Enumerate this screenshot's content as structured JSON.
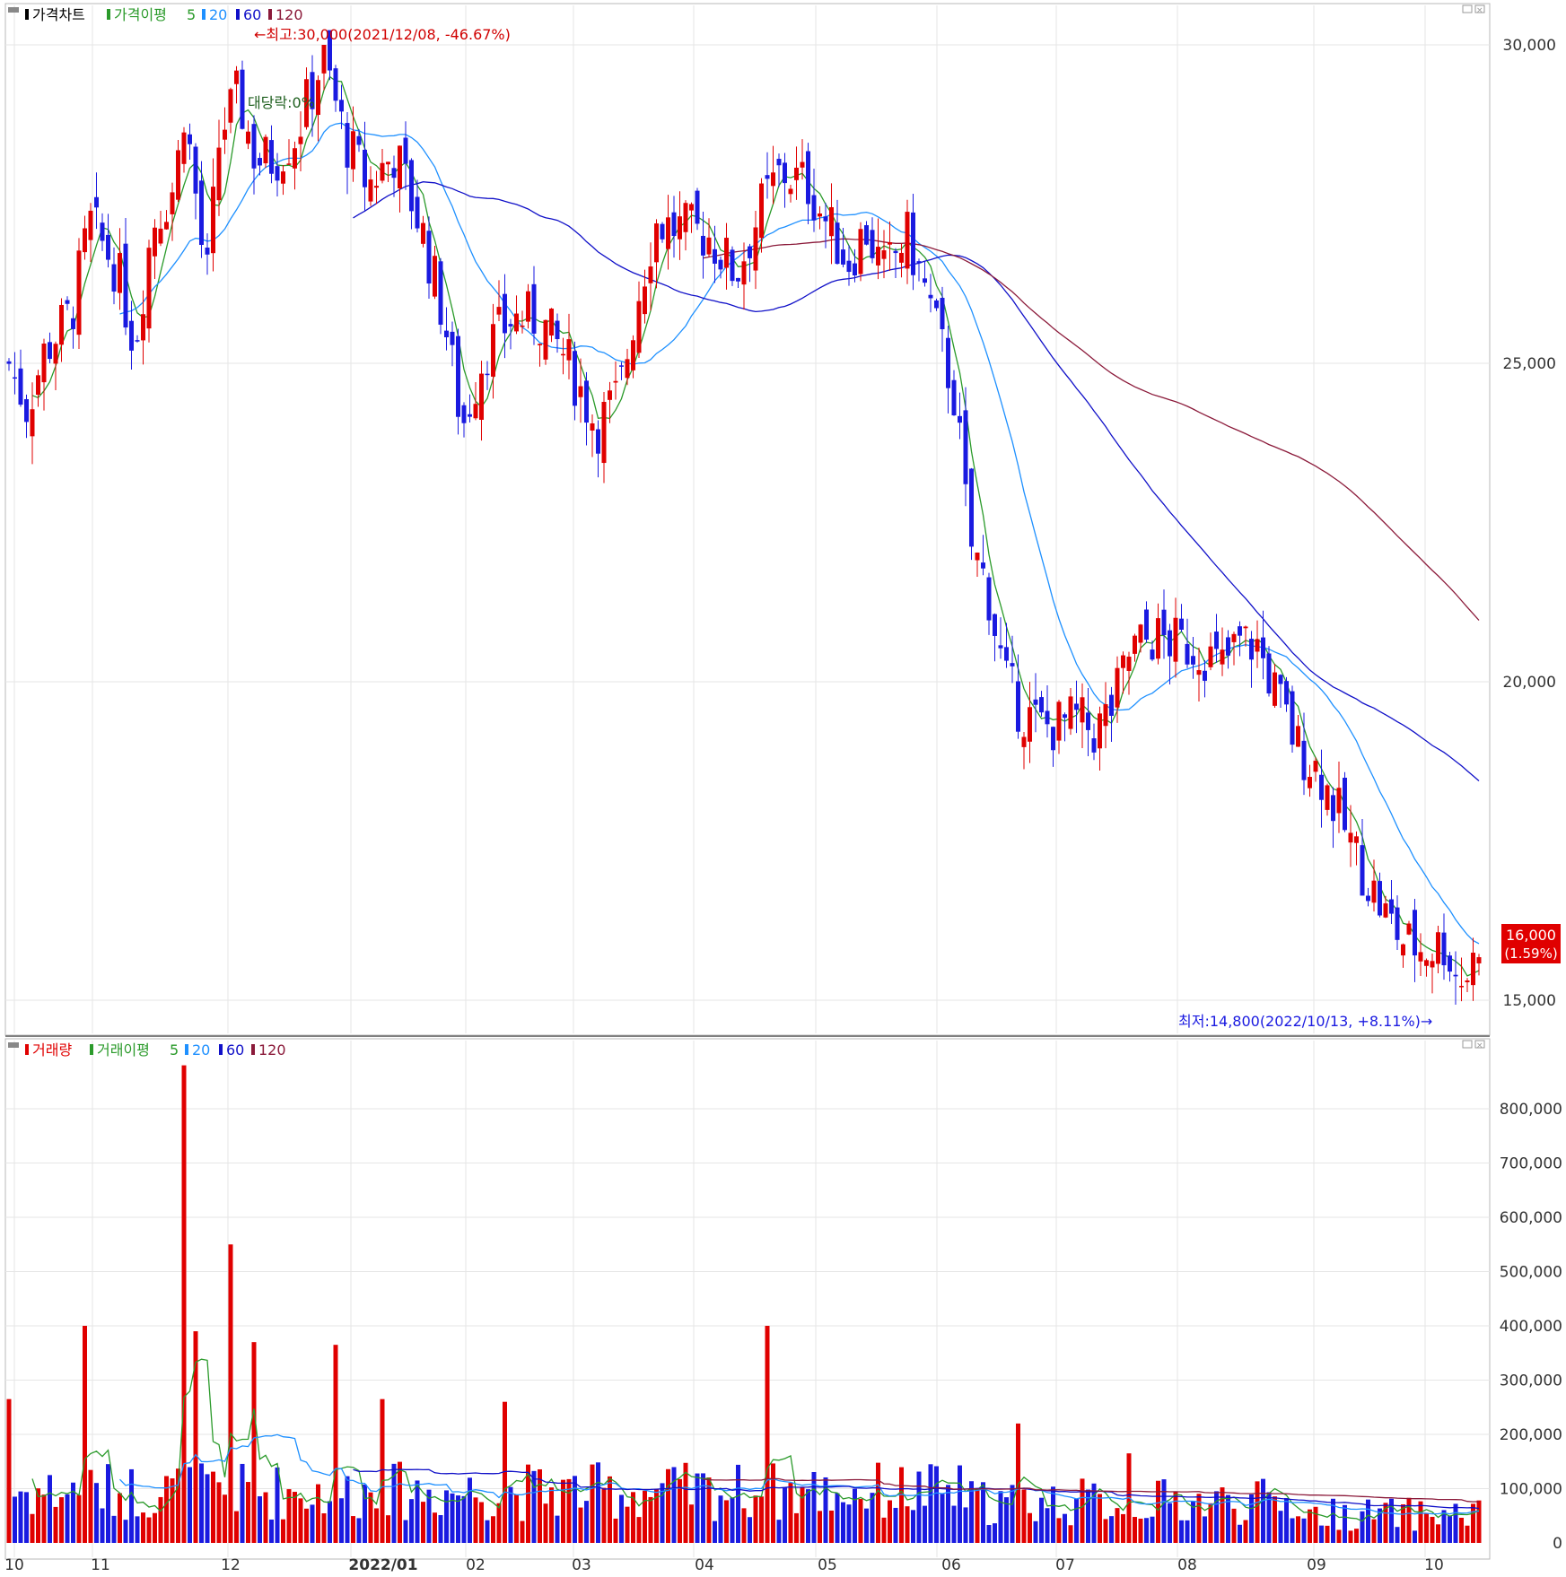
{
  "price_panel": {
    "legend": [
      "가격차트",
      "가격이평",
      "5",
      "20",
      "60",
      "120"
    ],
    "high_annotation": "←최고:30,000(2021/12/08, -46.67%)",
    "low_annotation": "최저:14,800(2022/10/13, +8.11%)→",
    "drop_annotation": "대당락:0%",
    "current_price": "16,000",
    "current_change": "(1.59%)",
    "y_ticks": [
      "30,000",
      "25,000",
      "20,000",
      "15,000"
    ]
  },
  "volume_panel": {
    "legend": [
      "거래량",
      "거래이평",
      "5",
      "20",
      "60",
      "120"
    ],
    "y_ticks": [
      "800,000",
      "700,000",
      "600,000",
      "500,000",
      "400,000",
      "300,000",
      "200,000",
      "100,000",
      "0"
    ]
  },
  "x_axis": {
    "months": [
      "10",
      "11",
      "12",
      "2022/01",
      "02",
      "03",
      "04",
      "05",
      "06",
      "07",
      "08",
      "09",
      "10"
    ]
  },
  "colors": {
    "up": "#e00000",
    "down": "#1a1ae0",
    "ma5": "#2a9a2a",
    "ma20": "#1e90ff",
    "ma60": "#1010c8",
    "ma120": "#8b1a3a"
  },
  "chart_data": [
    {
      "type": "candlestick",
      "title": "가격차트",
      "ylim": [
        14500,
        30500
      ],
      "x_months": [
        "10",
        "11",
        "12",
        "2022/01",
        "02",
        "03",
        "04",
        "05",
        "06",
        "07",
        "08",
        "09",
        "10"
      ],
      "monthly_close_approx": [
        24500,
        26200,
        26500,
        28000,
        24500,
        24000,
        25500,
        26000,
        22500,
        18800,
        20300,
        18500,
        16000
      ],
      "all_time_high": {
        "price": 30000,
        "date": "2021/12/08"
      },
      "all_time_low": {
        "price": 14800,
        "date": "2022/10/13"
      },
      "last": {
        "price": 16000,
        "change_pct": 1.59
      },
      "moving_averages": {
        "ma5_last": 15600,
        "ma20_last": 16700,
        "ma60_last": 19200,
        "ma120_last": 21200
      }
    },
    {
      "type": "bar",
      "title": "거래량",
      "ylim": [
        0,
        900000
      ],
      "max_volume": 880000,
      "typical_volume": 100000,
      "moving_averages": {
        "ma5_last": 60000,
        "ma20_last": 65000,
        "ma60_last": 75000,
        "ma120_last": 90000
      }
    }
  ]
}
